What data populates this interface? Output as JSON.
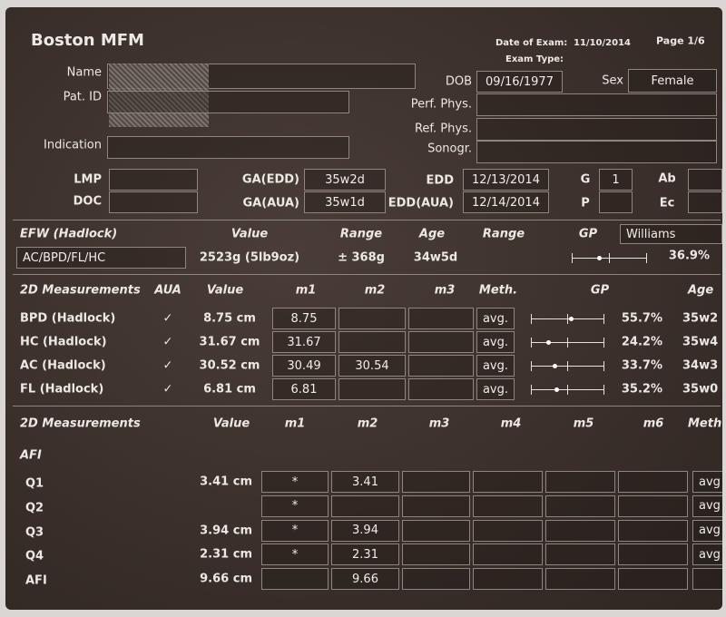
{
  "header": {
    "title": "Boston MFM",
    "date_label": "Date of Exam:",
    "date": "11/10/2014",
    "page": "Page 1/6",
    "exam_type_label": "Exam Type:"
  },
  "patient": {
    "name_label": "Name",
    "id_label": "Pat. ID",
    "indication_label": "Indication",
    "dob_label": "DOB",
    "dob": "09/16/1977",
    "sex_label": "Sex",
    "sex": "Female",
    "perf_label": "Perf. Phys.",
    "ref_label": "Ref. Phys.",
    "sonogr_label": "Sonogr."
  },
  "dating": {
    "lmp_label": "LMP",
    "doc_label": "DOC",
    "ga_edd_label": "GA(EDD)",
    "ga_edd": "35w2d",
    "ga_aua_label": "GA(AUA)",
    "ga_aua": "35w1d",
    "edd_label": "EDD",
    "edd": "12/13/2014",
    "edd_aua_label": "EDD(AUA)",
    "edd_aua": "12/14/2014",
    "g_label": "G",
    "g": "1",
    "p_label": "P",
    "ab_label": "Ab",
    "ec_label": "Ec"
  },
  "efw": {
    "headers": [
      "EFW (Hadlock)",
      "Value",
      "Range",
      "Age",
      "Range",
      "GP"
    ],
    "author": "Williams",
    "formula": "AC/BPD/FL/HC",
    "value": "2523g (5lb9oz)",
    "range": "± 368g",
    "age": "34w5d",
    "gp": "36.9%"
  },
  "biometry": {
    "headers": [
      "2D Measurements",
      "AUA",
      "Value",
      "m1",
      "m2",
      "m3",
      "Meth.",
      "GP",
      "Age"
    ],
    "rows": [
      {
        "label": "BPD (Hadlock)",
        "aua": "✓",
        "value": "8.75 cm",
        "m1": "8.75",
        "method": "avg.",
        "gp": "55.7%",
        "age": "35w2"
      },
      {
        "label": "HC (Hadlock)",
        "aua": "✓",
        "value": "31.67 cm",
        "m1": "31.67",
        "method": "avg.",
        "gp": "24.2%",
        "age": "35w4"
      },
      {
        "label": "AC (Hadlock)",
        "aua": "✓",
        "value": "30.52 cm",
        "m1": "30.49",
        "m2": "30.54",
        "method": "avg.",
        "gp": "33.7%",
        "age": "34w3"
      },
      {
        "label": "FL (Hadlock)",
        "aua": "✓",
        "value": "6.81 cm",
        "m1": "6.81",
        "method": "avg.",
        "gp": "35.2%",
        "age": "35w0"
      }
    ]
  },
  "afi": {
    "headers": [
      "2D Measurements",
      "Value",
      "m1",
      "m2",
      "m3",
      "m4",
      "m5",
      "m6",
      "Meth"
    ],
    "section": "AFI",
    "rows": [
      {
        "label": "Q1",
        "value": "3.41 cm",
        "m1": "*",
        "m2": "3.41",
        "method": "avg"
      },
      {
        "label": "Q2",
        "m1": "*",
        "method": "avg"
      },
      {
        "label": "Q3",
        "value": "3.94 cm",
        "m1": "*",
        "m2": "3.94",
        "method": "avg"
      },
      {
        "label": "Q4",
        "value": "2.31 cm",
        "m1": "*",
        "m2": "2.31",
        "method": "avg"
      },
      {
        "label": "AFI",
        "value": "9.66 cm",
        "m2": "9.66"
      }
    ]
  }
}
